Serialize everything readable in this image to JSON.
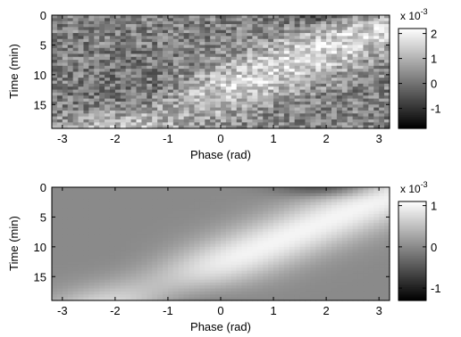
{
  "chart_data": [
    {
      "type": "heatmap",
      "xlabel": "Phase (rad)",
      "ylabel": "Time (min)",
      "xlim": [
        -3.2,
        3.2
      ],
      "ylim": [
        0,
        19
      ],
      "x_ticks": [
        -3,
        -2,
        -1,
        0,
        1,
        2,
        3
      ],
      "x_tick_labels": [
        "-3",
        "-2",
        "-1",
        "0",
        "1",
        "2",
        "3"
      ],
      "y_ticks": [
        0,
        5,
        10,
        15
      ],
      "y_tick_labels": [
        "0",
        "5",
        "10",
        "15"
      ],
      "y_direction": "down",
      "colormap": "gray",
      "colorbar": {
        "range": [
          -1.8,
          2.2
        ],
        "ticks": [
          -1,
          0,
          1,
          2
        ],
        "tick_labels": [
          "-1",
          "0",
          "1",
          "2"
        ],
        "exponent_base": "x 10",
        "exponent_power": "-3"
      },
      "field": {
        "style": "noisy",
        "description_values": "x 10^-3 units; darker values near x=-1..-2 at t 5-15, brighter diagonal band near x=0..1",
        "band_slope": -0.28,
        "band_offset": 0.8,
        "amplitude": 1.4,
        "base": 0.2,
        "dark_center_x": -1.2,
        "dark_center_t": 15,
        "top_dark_x": 2.0,
        "top_dark_t": 0
      }
    },
    {
      "type": "heatmap",
      "xlabel": "Phase (rad)",
      "ylabel": "Time (min)",
      "xlim": [
        -3.2,
        3.2
      ],
      "ylim": [
        0,
        19
      ],
      "x_ticks": [
        -3,
        -2,
        -1,
        0,
        1,
        2,
        3
      ],
      "x_tick_labels": [
        "-3",
        "-2",
        "-1",
        "0",
        "1",
        "2",
        "3"
      ],
      "y_ticks": [
        0,
        5,
        10,
        15
      ],
      "y_tick_labels": [
        "0",
        "5",
        "10",
        "15"
      ],
      "y_direction": "down",
      "colormap": "gray",
      "colorbar": {
        "range": [
          -1.3,
          1.1
        ],
        "ticks": [
          -1,
          0,
          1
        ],
        "tick_labels": [
          "-1",
          "0",
          "1"
        ],
        "exponent_base": "x 10",
        "exponent_power": "-3"
      },
      "field": {
        "style": "smooth",
        "band_slope": -0.28,
        "band_offset": 0.8,
        "amplitude": 1.0,
        "base": 0.0,
        "dark_center_x": -1.0,
        "dark_center_t": 18,
        "top_dark_x": 2.0,
        "top_dark_t": 0
      }
    }
  ]
}
